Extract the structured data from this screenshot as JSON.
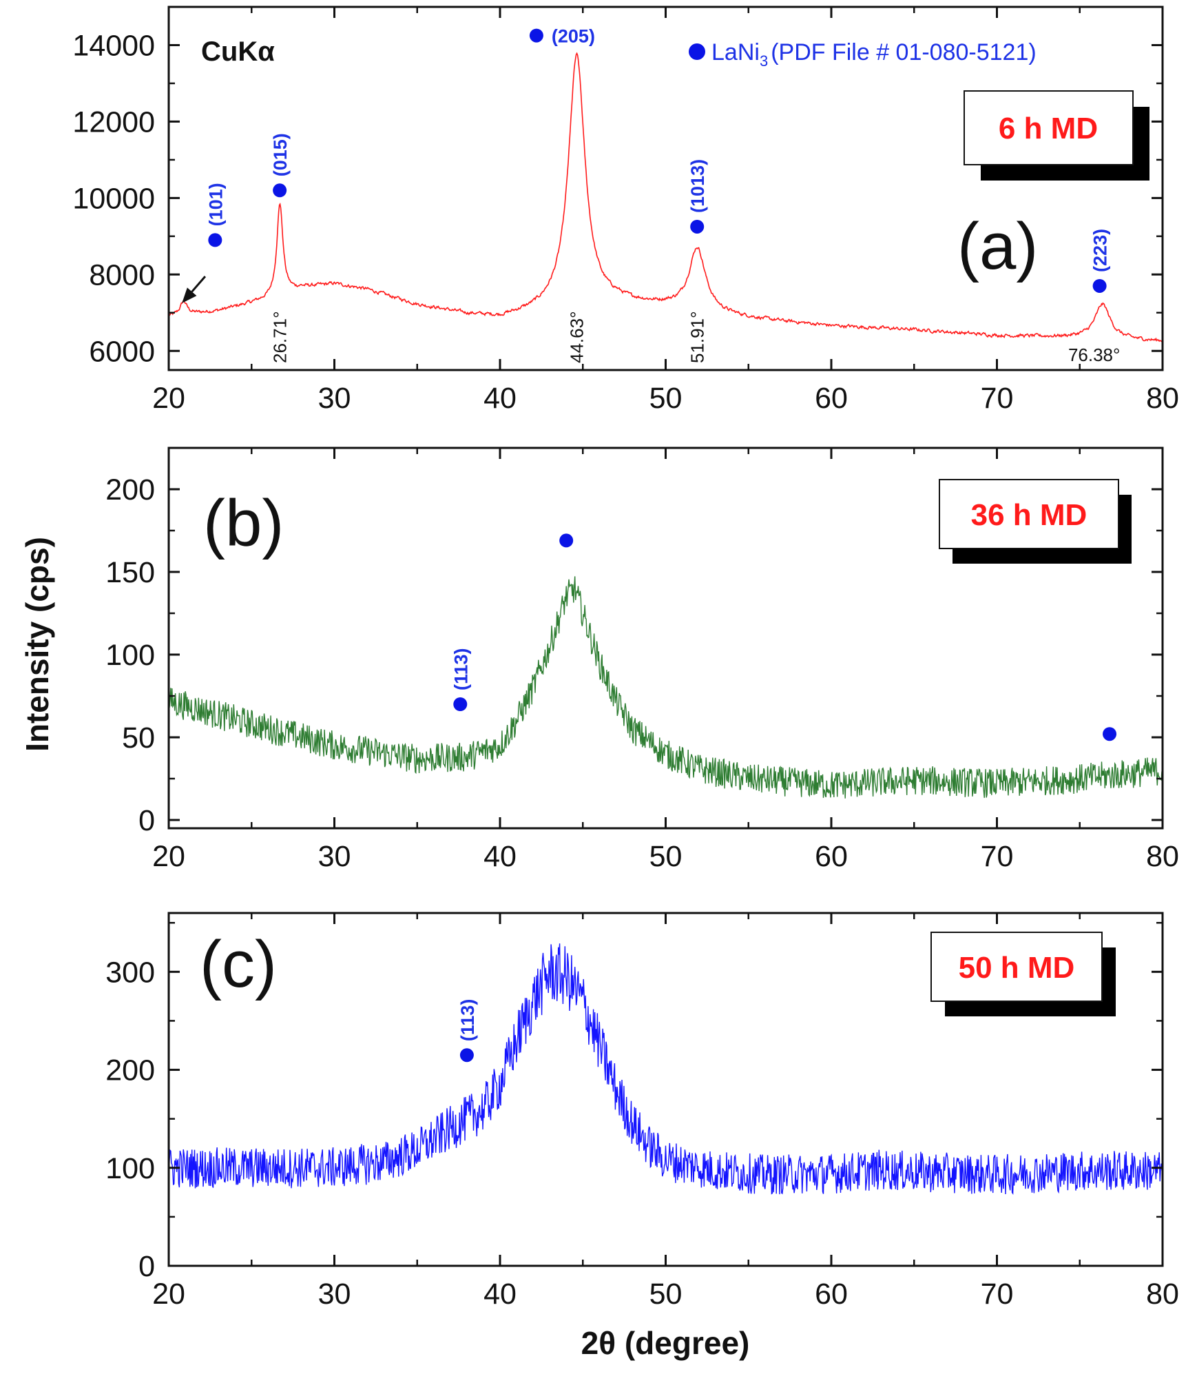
{
  "figure": {
    "xlabel": "2θ (degree)",
    "ylabel": "Intensity (cps)",
    "radiation": "CuKα",
    "legend": {
      "marker": "●",
      "text_prefix": "LaNi",
      "subscript": "3",
      "text_suffix": "(PDF File # 01-080-5121)"
    },
    "colors": {
      "red": "#ff1a1a",
      "green": "#2e7d32",
      "blue": "#1414ff",
      "marker": "#0a14e6",
      "hkl_text": "#1d32e6",
      "box_text": "#ff1a1a"
    }
  },
  "chart_data": [
    {
      "type": "line",
      "panel_label": "(a)",
      "condition_label": "6 h MD",
      "xlim": [
        20,
        80
      ],
      "ylim": [
        5500,
        15000
      ],
      "xticks": [
        20,
        30,
        40,
        50,
        60,
        70,
        80
      ],
      "yticks": [
        6000,
        8000,
        10000,
        12000,
        14000
      ],
      "xtick_labels": [
        "20",
        "30",
        "40",
        "50",
        "60",
        "70",
        "80"
      ],
      "ytick_labels": [
        "6000",
        "8000",
        "10000",
        "12000",
        "14000"
      ],
      "series": [
        {
          "name": "6 h MD",
          "color": "red",
          "noise": 70,
          "background": [
            [
              20,
              6900
            ],
            [
              23,
              7050
            ],
            [
              26,
              7350
            ],
            [
              28,
              7650
            ],
            [
              30,
              7750
            ],
            [
              32,
              7600
            ],
            [
              35,
              7200
            ],
            [
              38,
              6950
            ],
            [
              40,
              6850
            ],
            [
              43,
              7050
            ],
            [
              47,
              7250
            ],
            [
              50,
              7150
            ],
            [
              53,
              6950
            ],
            [
              56,
              6800
            ],
            [
              60,
              6650
            ],
            [
              65,
              6550
            ],
            [
              70,
              6400
            ],
            [
              75,
              6350
            ],
            [
              80,
              6250
            ]
          ],
          "peaks": [
            {
              "x": 20.9,
              "h": 350,
              "w": 0.25
            },
            {
              "x": 26.71,
              "h": 2400,
              "w": 0.22
            },
            {
              "x": 44.63,
              "h": 6600,
              "w": 0.6
            },
            {
              "x": 51.91,
              "h": 1650,
              "w": 0.6
            },
            {
              "x": 76.38,
              "h": 900,
              "w": 0.55
            }
          ]
        }
      ],
      "markers": [
        {
          "x": 22.8,
          "y": 8900,
          "hkl": "(101)"
        },
        {
          "x": 26.7,
          "y": 10200,
          "hkl": "(015)"
        },
        {
          "x": 42.2,
          "y": 14250,
          "hkl": "(205)",
          "horizontal": true
        },
        {
          "x": 51.9,
          "y": 9250,
          "hkl": "(1013)"
        },
        {
          "x": 76.2,
          "y": 7700,
          "hkl": "(223)"
        }
      ],
      "peak_angles": [
        {
          "x": 26.71,
          "label": "26.71°"
        },
        {
          "x": 44.63,
          "label": "44.63°"
        },
        {
          "x": 51.91,
          "label": "51.91°"
        },
        {
          "x": 76.38,
          "label": "76.38°",
          "horizontal": true
        }
      ],
      "arrow": {
        "from": [
          22.2,
          7950
        ],
        "to": [
          20.8,
          7250
        ]
      }
    },
    {
      "type": "line",
      "panel_label": "(b)",
      "condition_label": "36 h MD",
      "xlim": [
        20,
        80
      ],
      "ylim": [
        -5,
        225
      ],
      "xticks": [
        20,
        30,
        40,
        50,
        60,
        70,
        80
      ],
      "yticks": [
        0,
        50,
        100,
        150,
        200
      ],
      "xtick_labels": [
        "20",
        "30",
        "40",
        "50",
        "60",
        "70",
        "80"
      ],
      "ytick_labels": [
        "0",
        "50",
        "100",
        "150",
        "200"
      ],
      "series": [
        {
          "name": "36 h MD",
          "color": "green",
          "noise": 9,
          "background": [
            [
              20,
              72
            ],
            [
              25,
              58
            ],
            [
              30,
              45
            ],
            [
              35,
              37
            ],
            [
              38,
              38
            ],
            [
              40,
              45
            ],
            [
              41,
              60
            ],
            [
              42,
              80
            ],
            [
              43,
              105
            ],
            [
              44,
              135
            ],
            [
              44.5,
              140
            ],
            [
              45,
              125
            ],
            [
              46,
              95
            ],
            [
              47,
              72
            ],
            [
              48,
              55
            ],
            [
              50,
              40
            ],
            [
              52,
              31
            ],
            [
              55,
              25
            ],
            [
              60,
              21
            ],
            [
              65,
              24
            ],
            [
              70,
              22
            ],
            [
              75,
              25
            ],
            [
              80,
              30
            ]
          ],
          "peaks": []
        }
      ],
      "markers": [
        {
          "x": 37.6,
          "y": 70,
          "hkl": "(113)"
        },
        {
          "x": 44.0,
          "y": 169,
          "hkl": ""
        },
        {
          "x": 76.8,
          "y": 52,
          "hkl": ""
        }
      ],
      "peak_angles": []
    },
    {
      "type": "line",
      "panel_label": "(c)",
      "condition_label": "50 h MD",
      "xlim": [
        20,
        80
      ],
      "ylim": [
        0,
        360
      ],
      "xticks": [
        20,
        30,
        40,
        50,
        60,
        70,
        80
      ],
      "yticks": [
        0,
        100,
        200,
        300
      ],
      "xtick_labels": [
        "20",
        "30",
        "40",
        "50",
        "60",
        "70",
        "80"
      ],
      "ytick_labels": [
        "0",
        "100",
        "200",
        "300"
      ],
      "series": [
        {
          "name": "50 h MD",
          "color": "blue",
          "noise": 17,
          "background": [
            [
              20,
              100
            ],
            [
              25,
              100
            ],
            [
              30,
              100
            ],
            [
              33,
              106
            ],
            [
              35,
              118
            ],
            [
              37,
              140
            ],
            [
              38,
              150
            ],
            [
              39,
              160
            ],
            [
              40,
              185
            ],
            [
              41,
              230
            ],
            [
              42,
              270
            ],
            [
              43,
              300
            ],
            [
              44,
              295
            ],
            [
              45,
              270
            ],
            [
              46,
              225
            ],
            [
              47,
              180
            ],
            [
              48,
              145
            ],
            [
              49,
              122
            ],
            [
              50,
              108
            ],
            [
              53,
              97
            ],
            [
              56,
              93
            ],
            [
              60,
              94
            ],
            [
              63,
              98
            ],
            [
              65,
              96
            ],
            [
              70,
              93
            ],
            [
              75,
              97
            ],
            [
              80,
              97
            ]
          ],
          "peaks": []
        }
      ],
      "markers": [
        {
          "x": 38.0,
          "y": 215,
          "hkl": "(113)"
        }
      ],
      "peak_angles": []
    }
  ]
}
